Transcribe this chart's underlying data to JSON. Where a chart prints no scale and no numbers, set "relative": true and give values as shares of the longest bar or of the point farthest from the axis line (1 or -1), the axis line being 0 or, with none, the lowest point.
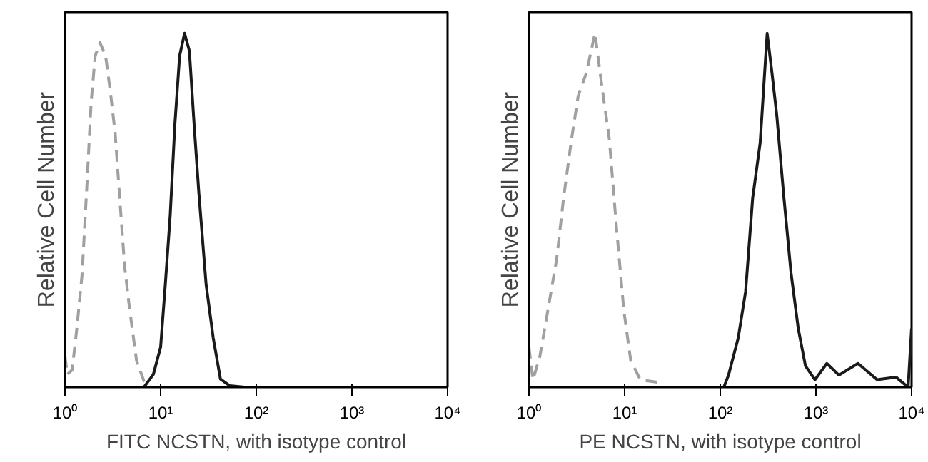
{
  "chart_data": [
    {
      "type": "line",
      "xlabel": "FITC NCSTN, with isotype control",
      "ylabel": "Relative Cell Number",
      "relative": true,
      "log": "x",
      "xlim": [
        1,
        10000
      ],
      "xticks": [
        {
          "value": 1,
          "label": "10⁰"
        },
        {
          "value": 10,
          "label": "10¹"
        },
        {
          "value": 100,
          "label": "10²"
        },
        {
          "value": 1000,
          "label": "10³"
        },
        {
          "value": 10000,
          "label": "10⁴"
        }
      ],
      "tick_labels": "x",
      "grid": false,
      "marker": "none",
      "series": [
        {
          "color": "#a0a0a0",
          "line_style": "dashed",
          "x": [
            1,
            1.06,
            1.19,
            1.33,
            1.51,
            1.68,
            1.88,
            2.07,
            2.32,
            2.66,
            2.99,
            3.35,
            3.76,
            4.2,
            4.7,
            5.6,
            6.7,
            7.5
          ],
          "values": [
            0.087,
            0.036,
            0.049,
            0.165,
            0.319,
            0.55,
            0.807,
            0.936,
            0.974,
            0.936,
            0.833,
            0.717,
            0.524,
            0.344,
            0.229,
            0.075,
            0.017,
            0
          ]
        },
        {
          "color": "#1a1a1a",
          "line_style": "solid",
          "x": [
            6.7,
            8.4,
            10,
            11.2,
            12.6,
            14.1,
            15.8,
            17.8,
            20,
            22.4,
            25.1,
            29.9,
            35.5,
            42.2,
            53,
            75
          ],
          "values": [
            0,
            0.036,
            0.113,
            0.29,
            0.486,
            0.743,
            0.936,
            1.0,
            0.95,
            0.743,
            0.55,
            0.29,
            0.139,
            0.023,
            0.004,
            0
          ]
        }
      ]
    },
    {
      "type": "line",
      "xlabel": "PE NCSTN, with isotype control",
      "ylabel": "Relative Cell Number",
      "relative": true,
      "log": "x",
      "xlim": [
        1,
        10000
      ],
      "xticks": [
        {
          "value": 1,
          "label": "10⁰"
        },
        {
          "value": 10,
          "label": "10¹"
        },
        {
          "value": 100,
          "label": "10²"
        },
        {
          "value": 1000,
          "label": "10³"
        },
        {
          "value": 10000,
          "label": "10⁴"
        }
      ],
      "tick_labels": "x",
      "grid": false,
      "marker": "none",
      "series": [
        {
          "color": "#a0a0a0",
          "line_style": "dashed",
          "x": [
            1,
            1.1,
            1.3,
            1.64,
            1.95,
            2.3,
            2.75,
            3.27,
            3.98,
            4.9,
            5.8,
            6.9,
            8.2,
            9.8,
            11.6,
            14.6,
            21.9,
            24.5
          ],
          "values": [
            0.113,
            0.021,
            0.087,
            0.244,
            0.363,
            0.534,
            0.69,
            0.823,
            0.888,
            1.0,
            0.849,
            0.704,
            0.455,
            0.218,
            0.074,
            0.021,
            0.014,
            0
          ]
        },
        {
          "color": "#1a1a1a",
          "line_style": "solid",
          "x": [
            109,
            122,
            154,
            184,
            218,
            261,
            309,
            347,
            389,
            463,
            549,
            653,
            777,
            977,
            1300,
            1740,
            2750,
            4360,
            6900,
            9200,
            10000
          ],
          "values": [
            0,
            0.034,
            0.139,
            0.27,
            0.534,
            0.69,
            1.0,
            0.888,
            0.77,
            0.534,
            0.323,
            0.166,
            0.06,
            0.021,
            0.067,
            0.034,
            0.067,
            0.021,
            0.028,
            0,
            0.166
          ]
        }
      ]
    }
  ]
}
